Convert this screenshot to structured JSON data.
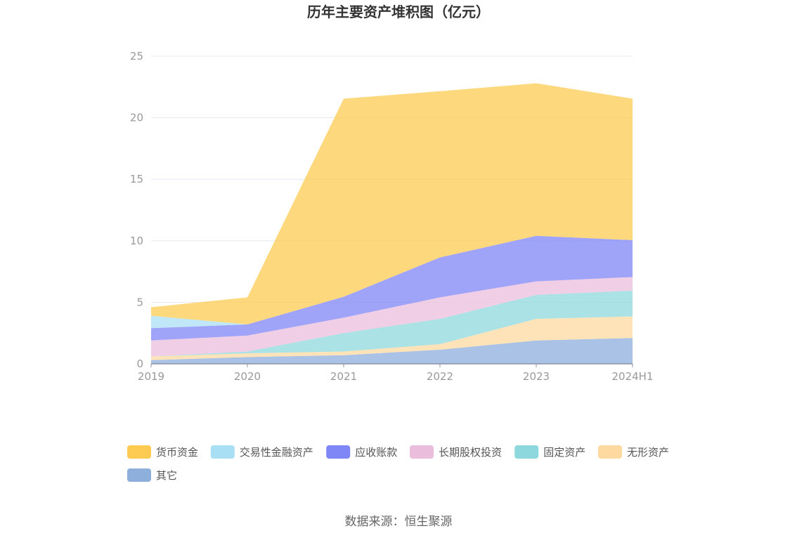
{
  "source": "数据来源：恒生聚源",
  "chart_data": {
    "type": "area",
    "stacked": true,
    "title": "历年主要资产堆积图（亿元）",
    "xlabel": "",
    "ylabel": "",
    "categories": [
      "2019",
      "2020",
      "2021",
      "2022",
      "2023",
      "2024H1"
    ],
    "ylim": [
      0,
      25
    ],
    "yticks": [
      0,
      5,
      10,
      15,
      20,
      25
    ],
    "grid": true,
    "legend_position": "bottom",
    "series": [
      {
        "name": "其它",
        "color": "#8eaedc",
        "values": [
          0.3,
          0.55,
          0.7,
          1.15,
          1.9,
          2.1
        ]
      },
      {
        "name": "无形资产",
        "color": "#ffd9a0",
        "values": [
          0.3,
          0.3,
          0.3,
          0.45,
          1.75,
          1.75
        ]
      },
      {
        "name": "固定资产",
        "color": "#8dd8dc",
        "values": [
          0.0,
          0.15,
          1.5,
          2.05,
          1.95,
          2.1
        ]
      },
      {
        "name": "长期股权投资",
        "color": "#ebbddc",
        "values": [
          1.3,
          1.3,
          1.25,
          1.75,
          1.1,
          1.1
        ]
      },
      {
        "name": "应收账款",
        "color": "#7f86f5",
        "values": [
          1.0,
          0.9,
          1.7,
          3.25,
          3.7,
          3.0
        ]
      },
      {
        "name": "交易性金融资产",
        "color": "#a9dff5",
        "values": [
          1.0,
          0.0,
          0.0,
          0.0,
          0.0,
          0.0
        ]
      },
      {
        "name": "货币资金",
        "color": "#fecb52",
        "values": [
          0.7,
          2.2,
          16.1,
          13.5,
          12.4,
          11.5
        ]
      }
    ],
    "legend_order": [
      "货币资金",
      "交易性金融资产",
      "应收账款",
      "长期股权投资",
      "固定资产",
      "无形资产",
      "其它"
    ]
  }
}
